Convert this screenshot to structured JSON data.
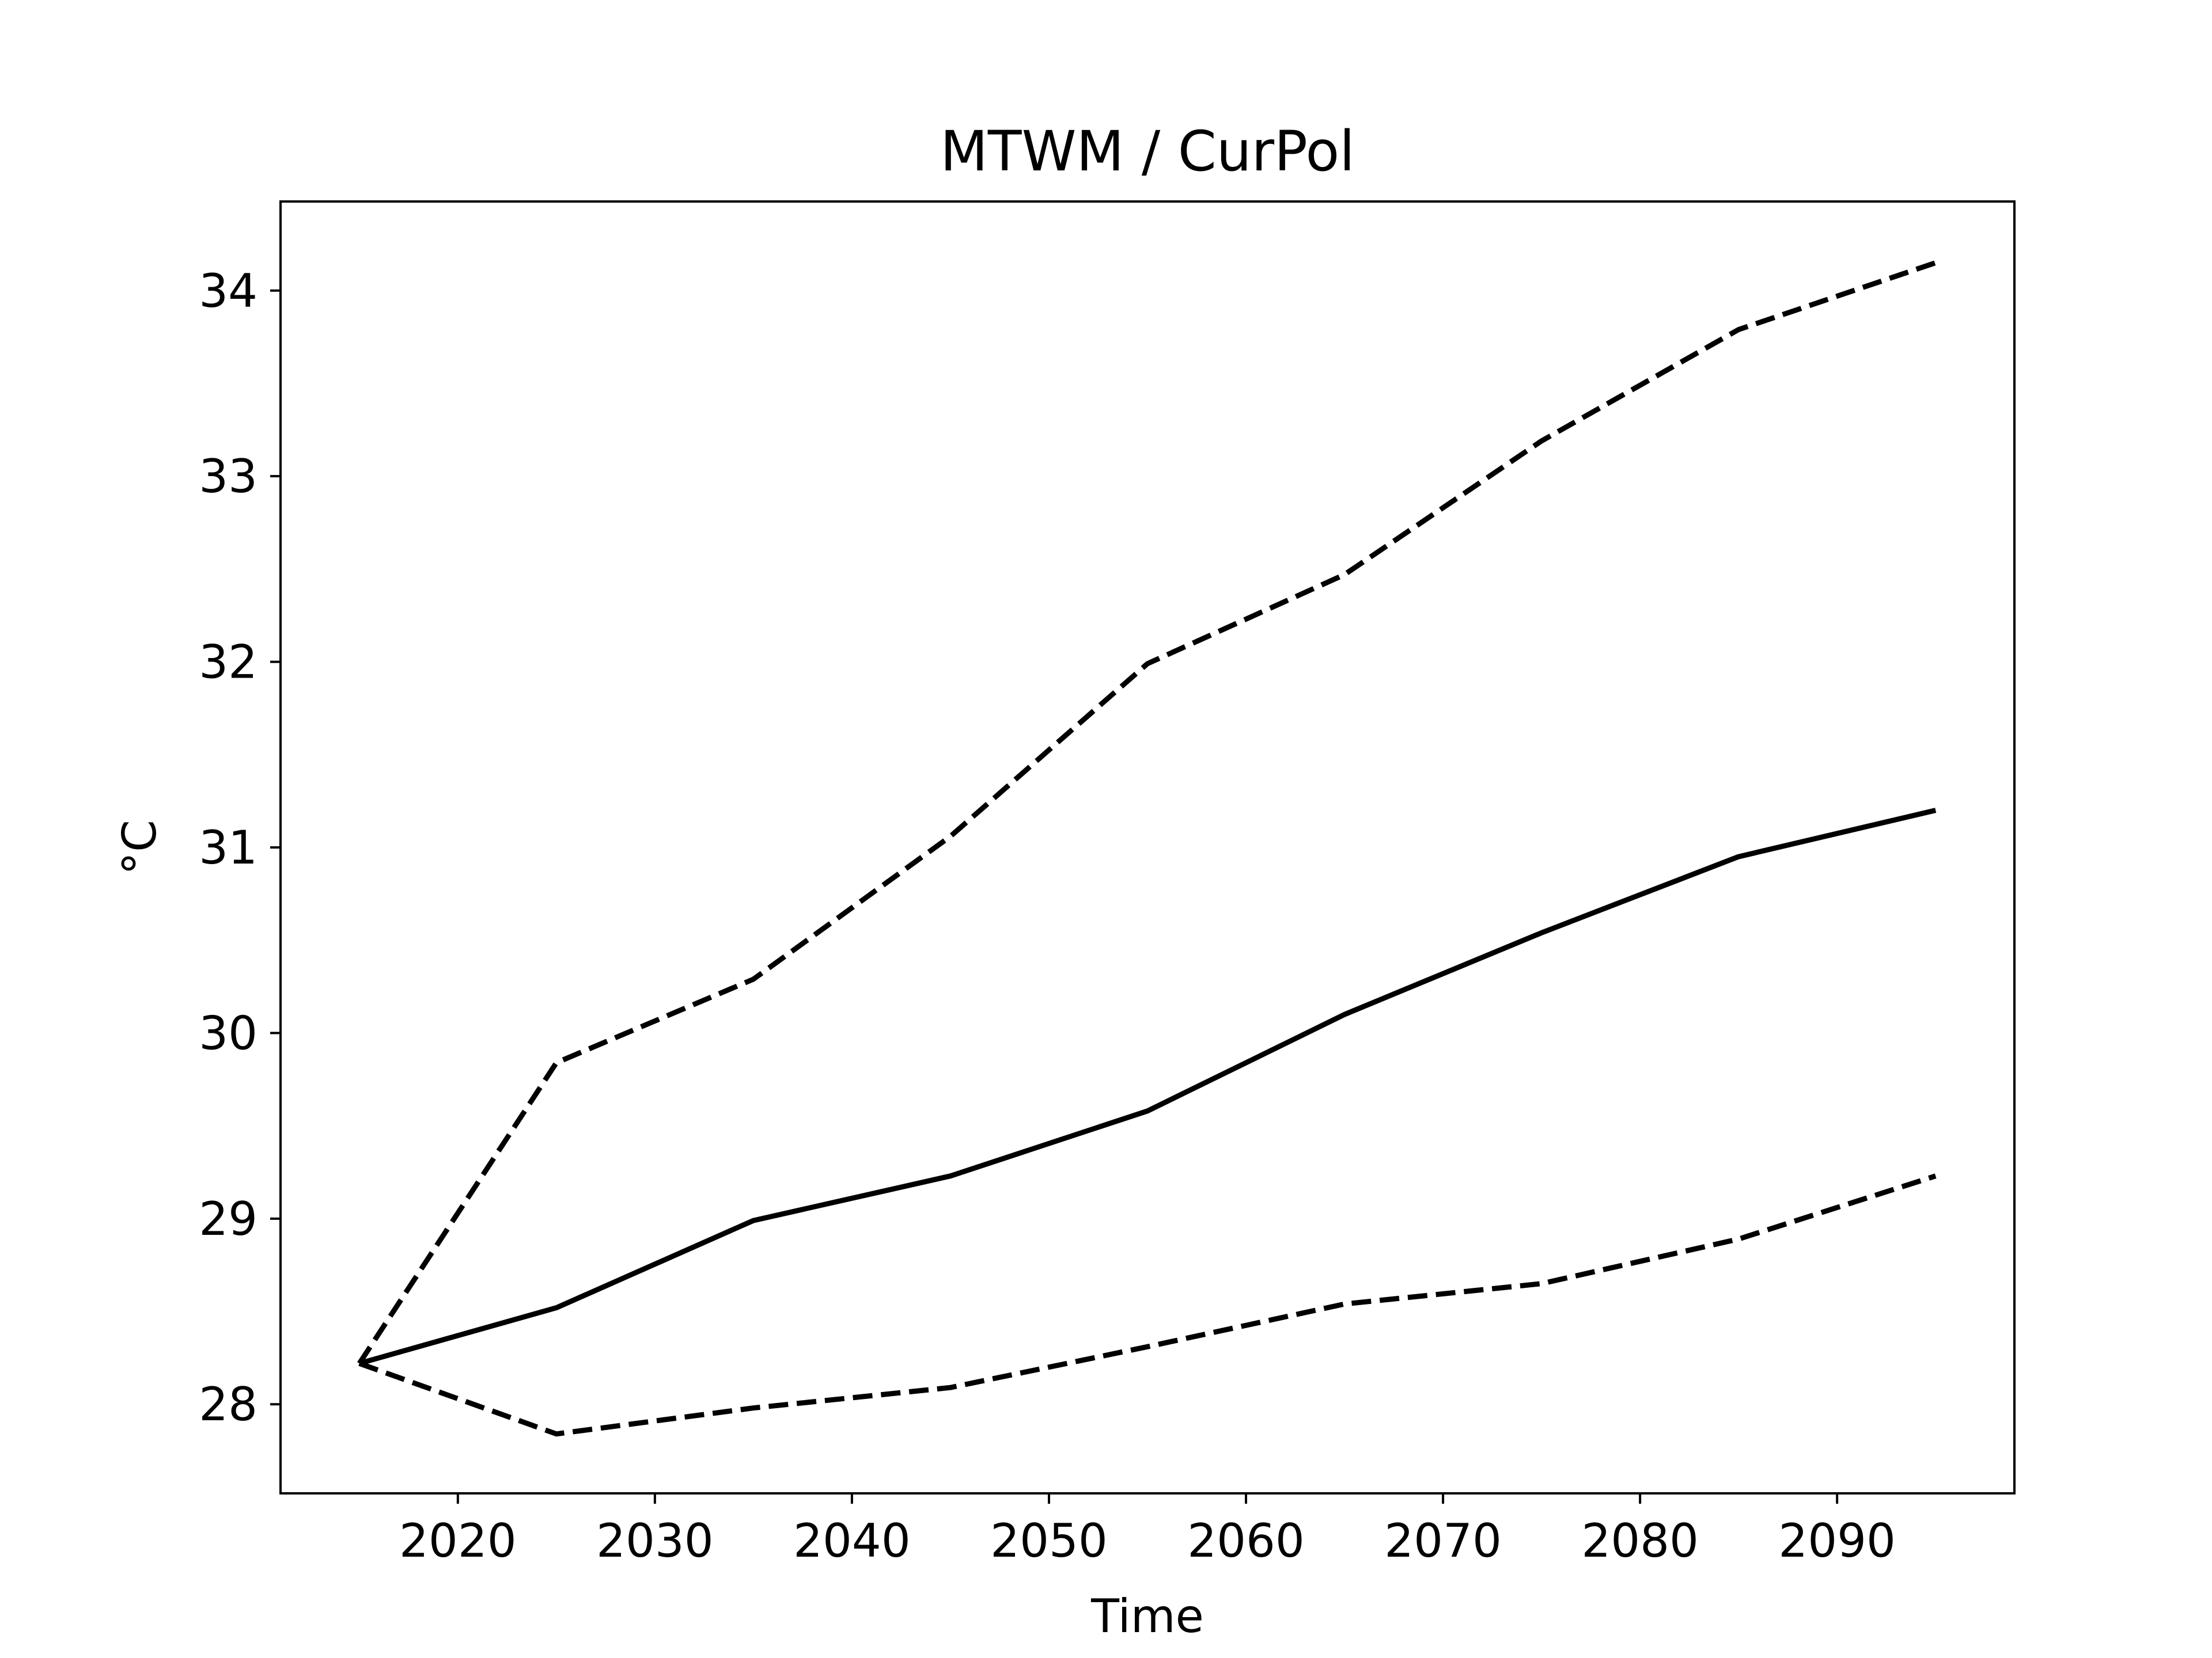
{
  "chart_data": {
    "type": "line",
    "title": "MTWM / CurPol",
    "xlabel": "Time",
    "ylabel": "°C",
    "x": [
      2015,
      2025,
      2035,
      2045,
      2055,
      2065,
      2075,
      2085,
      2095
    ],
    "series": [
      {
        "style": "solid",
        "values": [
          28.22,
          28.52,
          28.99,
          29.23,
          29.58,
          30.1,
          30.54,
          30.95,
          31.2
        ]
      },
      {
        "style": "dashed",
        "values": [
          28.22,
          29.84,
          30.29,
          31.06,
          31.99,
          32.47,
          33.19,
          33.79,
          34.15
        ]
      },
      {
        "style": "dashed",
        "values": [
          28.22,
          27.84,
          27.98,
          28.09,
          28.31,
          28.54,
          28.65,
          28.89,
          29.23
        ]
      }
    ],
    "xlim": [
      2011,
      2099
    ],
    "ylim": [
      27.52,
      34.48
    ],
    "xticks": [
      "2020",
      "2030",
      "2040",
      "2050",
      "2060",
      "2070",
      "2080",
      "2090"
    ],
    "yticks": [
      "28",
      "29",
      "30",
      "31",
      "32",
      "33",
      "34"
    ],
    "grid": false,
    "legend": "none",
    "colors": {
      "line": "#000000",
      "axes": "#000000",
      "background": "#ffffff"
    }
  }
}
